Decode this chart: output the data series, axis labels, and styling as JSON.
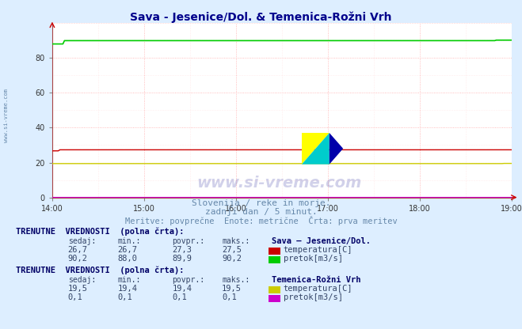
{
  "title": "Sava - Jesenice/Dol. & Temenica-Rožni Vrh",
  "title_color": "#00008B",
  "title_fontsize": 10,
  "bg_color": "#ddeeff",
  "plot_bg_color": "#ffffff",
  "xmin": 0,
  "xmax": 300,
  "ymin": 0,
  "ymax": 100,
  "yticks": [
    0,
    20,
    40,
    60,
    80
  ],
  "xtick_labels": [
    "14:00",
    "15:00",
    "16:00",
    "17:00",
    "18:00",
    "19:00"
  ],
  "xtick_positions": [
    0,
    60,
    120,
    180,
    240,
    300
  ],
  "grid_color_major": "#ffaaaa",
  "grid_color_minor": "#ffdddd",
  "watermark": "www.si-vreme.com",
  "watermark_color": "#00008B",
  "watermark_alpha": 0.18,
  "subtitle1": "Slovenija / reke in morje.",
  "subtitle2": "zadnji dan / 5 minut.",
  "subtitle3": "Meritve: povprečne  Enote: metrične  Črta: prva meritev",
  "subtitle_color": "#6688aa",
  "subtitle_fontsize": 8,
  "sava_temp_color": "#cc0000",
  "sava_temp_value": 27.3,
  "sava_flow_color": "#00cc00",
  "sava_flow_value": 89.9,
  "temenica_temp_color": "#cccc00",
  "temenica_temp_value": 19.4,
  "temenica_flow_color": "#cc00cc",
  "temenica_flow_value": 0.1,
  "section1_header": "TRENUTNE  VREDNOSTI  (polna črta):",
  "section1_label1": "Sava – Jesenice/Dol.",
  "section1_sedaj1": "26,7",
  "section1_min1": "26,7",
  "section1_povpr1": "27,3",
  "section1_maks1": "27,5",
  "section1_legend1": "temperatura[C]",
  "section1_sedaj2": "90,2",
  "section1_min2": "88,0",
  "section1_povpr2": "89,9",
  "section1_maks2": "90,2",
  "section1_legend2": "pretok[m3/s]",
  "section2_header": "TRENUTNE  VREDNOSTI  (polna črta):",
  "section2_label1": "Temenica-Rožni Vrh",
  "section2_sedaj1": "19,5",
  "section2_min1": "19,4",
  "section2_povpr1": "19,4",
  "section2_maks1": "19,5",
  "section2_legend1": "temperatura[C]",
  "section2_sedaj2": "0,1",
  "section2_min2": "0,1",
  "section2_povpr2": "0,1",
  "section2_maks2": "0,1",
  "section2_legend2": "pretok[m3/s]",
  "col_headers": [
    "sedaj:",
    "min.:",
    "povpr.:",
    "maks.:"
  ],
  "left_label": "www.si-vreme.com"
}
